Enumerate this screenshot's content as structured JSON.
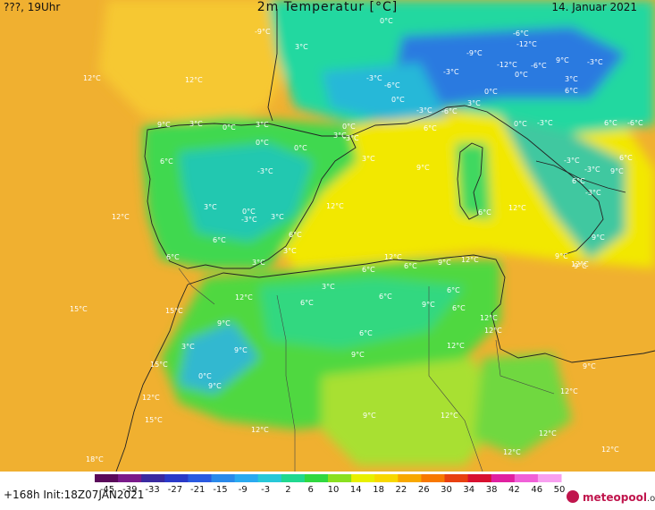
{
  "header": {
    "left": "???, 19Uhr",
    "title": "2m Temperatur [°C]",
    "date": "14. Januar 2021"
  },
  "footer": {
    "run_info": "+168h  Init:18Z07JAN2021",
    "logo_name": "meteopool",
    "logo_tld": ".org"
  },
  "colorbar": {
    "ticks": [
      "-45",
      "-39",
      "-33",
      "-27",
      "-21",
      "-15",
      "-9",
      "-3",
      "2",
      "6",
      "10",
      "14",
      "18",
      "22",
      "26",
      "30",
      "34",
      "38",
      "42",
      "46",
      "50"
    ],
    "colors": [
      "#5a0a5a",
      "#7a1a8a",
      "#3a2aa0",
      "#2a3ac8",
      "#2a5ae0",
      "#2a8aea",
      "#2aaaf0",
      "#28c8d8",
      "#20d890",
      "#30d840",
      "#8ae020",
      "#e8f000",
      "#f8d800",
      "#f8a800",
      "#f87800",
      "#e84010",
      "#d81030",
      "#e020a0",
      "#f060d8",
      "#f8a0f0"
    ]
  },
  "map_labels": [
    {
      "text": "0°C"
    },
    {
      "text": "-9°C"
    },
    {
      "text": "3°C"
    },
    {
      "text": "12°C"
    },
    {
      "text": "12°C"
    },
    {
      "text": "-6°C"
    },
    {
      "text": "-12°C"
    },
    {
      "text": "-9°C"
    },
    {
      "text": "-12°C"
    },
    {
      "text": "-6°C"
    },
    {
      "text": "9°C"
    },
    {
      "text": "-3°C"
    },
    {
      "text": "0°C"
    },
    {
      "text": "-3°C"
    },
    {
      "text": "3°C"
    },
    {
      "text": "-3°C"
    },
    {
      "text": "-6°C"
    },
    {
      "text": "0°C"
    },
    {
      "text": "-3°C"
    },
    {
      "text": "-6°C"
    },
    {
      "text": "3°C"
    },
    {
      "text": "0°C"
    },
    {
      "text": "6°C"
    },
    {
      "text": "3°C"
    },
    {
      "text": "3°C"
    },
    {
      "text": "9°C"
    },
    {
      "text": "3°C"
    },
    {
      "text": "0°C"
    },
    {
      "text": "6°C"
    },
    {
      "text": "0°C"
    },
    {
      "text": "-3°C"
    },
    {
      "text": "6°C"
    },
    {
      "text": "-6°C"
    },
    {
      "text": "-3°C"
    },
    {
      "text": "0°C"
    },
    {
      "text": "0°C"
    },
    {
      "text": "-3°C"
    },
    {
      "text": "6°C"
    },
    {
      "text": "0°C"
    },
    {
      "text": "-3°C"
    },
    {
      "text": "6°C"
    },
    {
      "text": "-3°C"
    },
    {
      "text": "3°C"
    },
    {
      "text": "9°C"
    },
    {
      "text": "6°C"
    },
    {
      "text": "-3°C"
    },
    {
      "text": "9°C"
    },
    {
      "text": "3°C"
    },
    {
      "text": "12°C"
    },
    {
      "text": "3°C"
    },
    {
      "text": "0°C"
    },
    {
      "text": "-3°C"
    },
    {
      "text": "12°C"
    },
    {
      "text": "6°C"
    },
    {
      "text": "12°C"
    },
    {
      "text": "6°C"
    },
    {
      "text": "6°C"
    },
    {
      "text": "9°C"
    },
    {
      "text": "3°C"
    },
    {
      "text": "6°C"
    },
    {
      "text": "9°C"
    },
    {
      "text": "3°C"
    },
    {
      "text": "12°C"
    },
    {
      "text": "6°C"
    },
    {
      "text": "9°C"
    },
    {
      "text": "12°C"
    },
    {
      "text": "9°C"
    },
    {
      "text": "6°C"
    },
    {
      "text": "3°C"
    },
    {
      "text": "12°C"
    },
    {
      "text": "6°C"
    },
    {
      "text": "6°C"
    },
    {
      "text": "12°C"
    },
    {
      "text": "6°C"
    },
    {
      "text": "12°C"
    },
    {
      "text": "15°C"
    },
    {
      "text": "15°C"
    },
    {
      "text": "9°C"
    },
    {
      "text": "6°C"
    },
    {
      "text": "9°C"
    },
    {
      "text": "3°C"
    },
    {
      "text": "6°C"
    },
    {
      "text": "12°C"
    },
    {
      "text": "9°C"
    },
    {
      "text": "12°C"
    },
    {
      "text": "0°C"
    },
    {
      "text": "9°C"
    },
    {
      "text": "15°C"
    },
    {
      "text": "9°C"
    },
    {
      "text": "9°C"
    },
    {
      "text": "12°C"
    },
    {
      "text": "12°C"
    },
    {
      "text": "15°C"
    },
    {
      "text": "12°C"
    },
    {
      "text": "9°C"
    },
    {
      "text": "12°C"
    },
    {
      "text": "18°C"
    },
    {
      "text": "12°C"
    },
    {
      "text": "12°C"
    },
    {
      "text": "12°C"
    }
  ]
}
